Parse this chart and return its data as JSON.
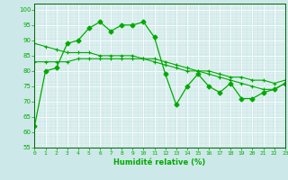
{
  "xlabel": "Humidité relative (%)",
  "background_color": "#cce8e8",
  "grid_color": "#aacccc",
  "line_color": "#00aa00",
  "xlim": [
    0,
    23
  ],
  "ylim": [
    55,
    102
  ],
  "yticks": [
    55,
    60,
    65,
    70,
    75,
    80,
    85,
    90,
    95,
    100
  ],
  "xticks": [
    0,
    1,
    2,
    3,
    4,
    5,
    6,
    7,
    8,
    9,
    10,
    11,
    12,
    13,
    14,
    15,
    16,
    17,
    18,
    19,
    20,
    21,
    22,
    23
  ],
  "series1": [
    62,
    80,
    81,
    89,
    90,
    94,
    96,
    93,
    95,
    95,
    96,
    91,
    79,
    69,
    75,
    79,
    75,
    73,
    76,
    71,
    71,
    73,
    74,
    76
  ],
  "series2": [
    89,
    88,
    87,
    86,
    86,
    86,
    85,
    85,
    85,
    85,
    84,
    84,
    83,
    82,
    81,
    80,
    80,
    79,
    78,
    78,
    77,
    77,
    76,
    77
  ],
  "series3": [
    83,
    83,
    83,
    83,
    84,
    84,
    84,
    84,
    84,
    84,
    84,
    83,
    82,
    81,
    80,
    80,
    79,
    78,
    77,
    76,
    75,
    74,
    74,
    76
  ]
}
